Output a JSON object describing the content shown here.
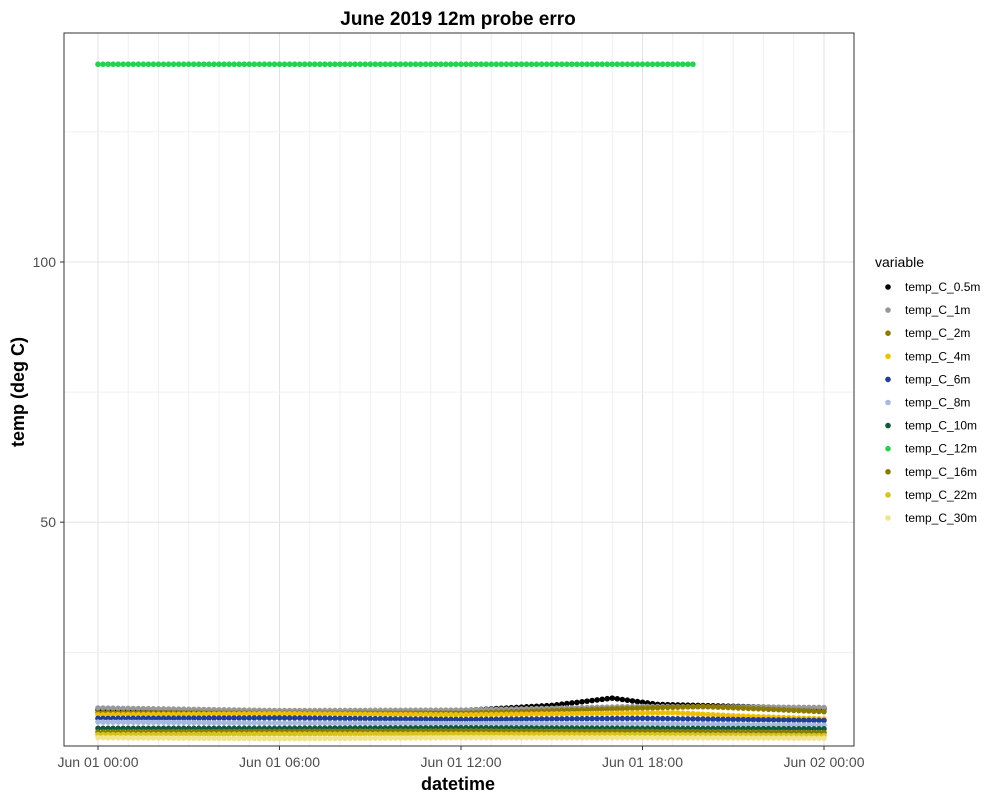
{
  "chart_data": {
    "type": "scatter",
    "title": "June 2019 12m probe erro",
    "xlabel": "datetime",
    "ylabel": "temp (deg C)",
    "xlim": [
      "2019-06-01 00:00",
      "2019-06-02 00:00"
    ],
    "ylim": [
      7,
      144
    ],
    "x_ticks": [
      {
        "value": "2019-06-01 00:00",
        "label": "Jun 01 00:00"
      },
      {
        "value": "2019-06-01 06:00",
        "label": "Jun 01 06:00"
      },
      {
        "value": "2019-06-01 12:00",
        "label": "Jun 01 12:00"
      },
      {
        "value": "2019-06-01 18:00",
        "label": "Jun 01 18:00"
      },
      {
        "value": "2019-06-02 00:00",
        "label": "Jun 02 00:00"
      }
    ],
    "y_ticks": [
      50,
      100
    ],
    "grid": true,
    "legend": {
      "title": "variable",
      "placement": "right"
    },
    "series": [
      {
        "name": "temp_C_0.5m",
        "color": "#000000",
        "x_range": [
          "2019-06-01 00:00",
          "2019-06-02 00:00"
        ],
        "profile": [
          {
            "x": "2019-06-01 00:00",
            "y": 14.0
          },
          {
            "x": "2019-06-01 06:00",
            "y": 13.6
          },
          {
            "x": "2019-06-01 12:00",
            "y": 13.8
          },
          {
            "x": "2019-06-01 15:00",
            "y": 14.8
          },
          {
            "x": "2019-06-01 17:00",
            "y": 16.2
          },
          {
            "x": "2019-06-01 18:30",
            "y": 15.0
          },
          {
            "x": "2019-06-02 00:00",
            "y": 14.2
          }
        ]
      },
      {
        "name": "temp_C_1m",
        "color": "#999999",
        "x_range": [
          "2019-06-01 00:00",
          "2019-06-02 00:00"
        ],
        "profile": [
          {
            "x": "2019-06-01 00:00",
            "y": 14.3
          },
          {
            "x": "2019-06-01 06:00",
            "y": 13.8
          },
          {
            "x": "2019-06-01 12:00",
            "y": 13.9
          },
          {
            "x": "2019-06-01 18:00",
            "y": 14.6
          },
          {
            "x": "2019-06-02 00:00",
            "y": 14.4
          }
        ]
      },
      {
        "name": "temp_C_2m",
        "color": "#8c7b00",
        "x_range": [
          "2019-06-01 00:00",
          "2019-06-02 00:00"
        ],
        "profile": [
          {
            "x": "2019-06-01 00:00",
            "y": 13.4
          },
          {
            "x": "2019-06-01 06:00",
            "y": 13.3
          },
          {
            "x": "2019-06-01 12:00",
            "y": 13.3
          },
          {
            "x": "2019-06-01 20:00",
            "y": 14.6
          },
          {
            "x": "2019-06-02 00:00",
            "y": 13.6
          }
        ]
      },
      {
        "name": "temp_C_4m",
        "color": "#f0c000",
        "x_range": [
          "2019-06-01 00:00",
          "2019-06-02 00:00"
        ],
        "profile": [
          {
            "x": "2019-06-01 00:00",
            "y": 13.0
          },
          {
            "x": "2019-06-01 06:00",
            "y": 13.2
          },
          {
            "x": "2019-06-01 12:00",
            "y": 13.0
          },
          {
            "x": "2019-06-01 19:00",
            "y": 13.4
          },
          {
            "x": "2019-06-01 21:00",
            "y": 12.8
          },
          {
            "x": "2019-06-02 00:00",
            "y": 12.2
          }
        ]
      },
      {
        "name": "temp_C_6m",
        "color": "#1f3f99",
        "x_range": [
          "2019-06-01 00:00",
          "2019-06-02 00:00"
        ],
        "profile": [
          {
            "x": "2019-06-01 00:00",
            "y": 12.3
          },
          {
            "x": "2019-06-01 06:00",
            "y": 12.4
          },
          {
            "x": "2019-06-01 12:00",
            "y": 12.1
          },
          {
            "x": "2019-06-01 18:00",
            "y": 12.3
          },
          {
            "x": "2019-06-02 00:00",
            "y": 11.9
          }
        ]
      },
      {
        "name": "temp_C_8m",
        "color": "#a7b9e0",
        "x_range": [
          "2019-06-01 00:00",
          "2019-06-02 00:00"
        ],
        "profile": [
          {
            "x": "2019-06-01 00:00",
            "y": 11.6
          },
          {
            "x": "2019-06-01 06:00",
            "y": 11.4
          },
          {
            "x": "2019-06-01 12:00",
            "y": 11.3
          },
          {
            "x": "2019-06-01 18:00",
            "y": 11.3
          },
          {
            "x": "2019-06-02 00:00",
            "y": 11.0
          }
        ]
      },
      {
        "name": "temp_C_10m",
        "color": "#0d5a3c",
        "x_range": [
          "2019-06-01 00:00",
          "2019-06-02 00:00"
        ],
        "profile": [
          {
            "x": "2019-06-01 00:00",
            "y": 10.4
          },
          {
            "x": "2019-06-01 06:00",
            "y": 10.4
          },
          {
            "x": "2019-06-01 12:00",
            "y": 10.5
          },
          {
            "x": "2019-06-01 18:00",
            "y": 10.4
          },
          {
            "x": "2019-06-02 00:00",
            "y": 10.3
          }
        ]
      },
      {
        "name": "temp_C_12m",
        "color": "#1ed647",
        "x_range": [
          "2019-06-01 00:00",
          "2019-06-01 19:40"
        ],
        "profile": [
          {
            "x": "2019-06-01 00:00",
            "y": 138.0
          },
          {
            "x": "2019-06-01 19:40",
            "y": 138.0
          }
        ]
      },
      {
        "name": "temp_C_16m",
        "color": "#8a7a00",
        "x_range": [
          "2019-06-01 00:00",
          "2019-06-02 00:00"
        ],
        "profile": [
          {
            "x": "2019-06-01 00:00",
            "y": 9.7
          },
          {
            "x": "2019-06-01 06:00",
            "y": 9.8
          },
          {
            "x": "2019-06-01 12:00",
            "y": 9.9
          },
          {
            "x": "2019-06-01 18:00",
            "y": 9.8
          },
          {
            "x": "2019-06-02 00:00",
            "y": 9.6
          }
        ]
      },
      {
        "name": "temp_C_22m",
        "color": "#d7c31e",
        "x_range": [
          "2019-06-01 00:00",
          "2019-06-02 00:00"
        ],
        "profile": [
          {
            "x": "2019-06-01 00:00",
            "y": 9.2
          },
          {
            "x": "2019-06-01 06:00",
            "y": 9.3
          },
          {
            "x": "2019-06-01 12:00",
            "y": 9.3
          },
          {
            "x": "2019-06-01 18:00",
            "y": 9.2
          },
          {
            "x": "2019-06-02 00:00",
            "y": 9.0
          }
        ]
      },
      {
        "name": "temp_C_30m",
        "color": "#f3e38a",
        "x_range": [
          "2019-06-01 00:00",
          "2019-06-02 00:00"
        ],
        "profile": [
          {
            "x": "2019-06-01 00:00",
            "y": 8.6
          },
          {
            "x": "2019-06-01 06:00",
            "y": 8.4
          },
          {
            "x": "2019-06-01 12:00",
            "y": 8.6
          },
          {
            "x": "2019-06-01 18:00",
            "y": 8.6
          },
          {
            "x": "2019-06-02 00:00",
            "y": 8.5
          }
        ]
      }
    ]
  }
}
